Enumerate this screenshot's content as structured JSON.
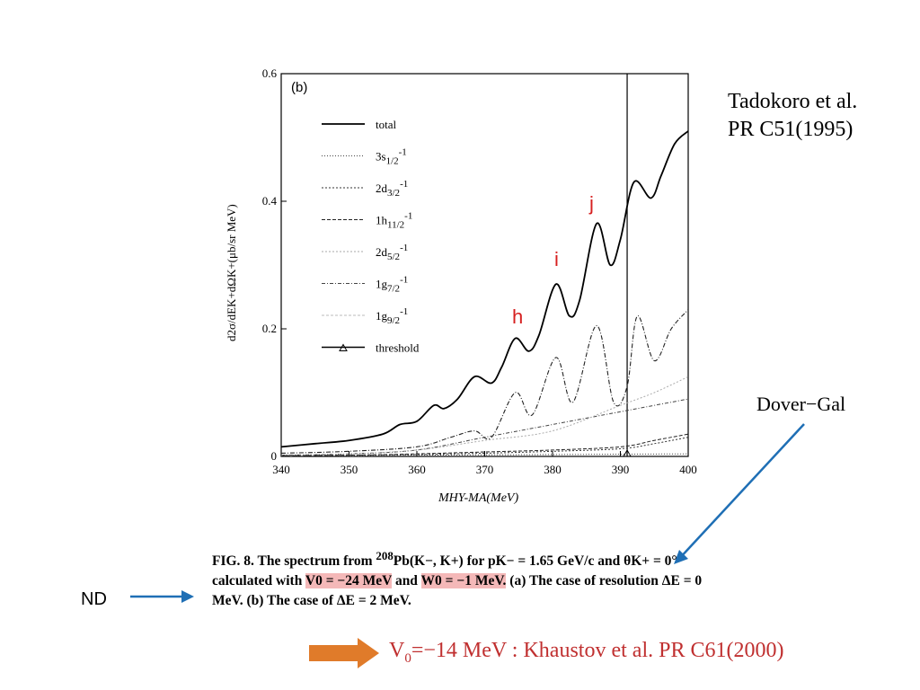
{
  "reference": {
    "line1": "Tadokoro et al.",
    "line2": "PR C51(1995)"
  },
  "dover_label": "Dover−Gal",
  "nd_label": "ND",
  "peak_labels": [
    "h",
    "i",
    "j"
  ],
  "khaustov": {
    "v": "V",
    "sub": "0",
    "rest": "=−14 MeV : Khaustov et al.  PR C61(2000)"
  },
  "caption": {
    "p1": "FIG. 8.  The spectrum from ",
    "sup": "208",
    "p2": "Pb(K−, K+) for pK− = 1.65 GeV/c and θK+ = 0° calculated with ",
    "v0": "V0 = −24 MeV",
    "and": " and ",
    "w0": "W0 = −1 MeV.",
    "p3": " (a) The case of resolution ΔE = 0 MeV. (b) The case of ΔE = 2 MeV."
  },
  "colors": {
    "arrow_blue": "#1f6fb5",
    "arrow_orange": "#e07b2a",
    "highlight": "#f4b8b8",
    "peak_red": "#d62020",
    "khaustov_red": "#c03030"
  },
  "chart_data": {
    "type": "line",
    "panel_label": "(b)",
    "xlabel": "MHY-MA(MeV)",
    "ylabel": "d2σ/dEK+dΩK+(μb/sr MeV)",
    "xlim": [
      340,
      400
    ],
    "ylim": [
      0,
      0.6
    ],
    "xticks": [
      340,
      350,
      360,
      370,
      380,
      390,
      400
    ],
    "yticks": [
      0,
      0.2,
      0.4,
      0.6
    ],
    "threshold_x": 391,
    "grid": false,
    "legend_position": "top-left",
    "legend": [
      "total",
      "3s1/2-1",
      "2d3/2-1",
      "1h11/2-1",
      "2d5/2-1",
      "1g7/2-1",
      "1g9/2-1",
      "threshold"
    ],
    "series": [
      {
        "name": "total",
        "x": [
          340,
          345,
          350,
          355,
          357.5,
          360,
          362.5,
          364,
          366,
          368.5,
          371,
          372.5,
          374.5,
          376.5,
          378,
          380.5,
          382.5,
          384,
          386.5,
          388.5,
          390,
          392,
          394.5,
          396,
          398,
          400
        ],
        "y": [
          0.015,
          0.02,
          0.025,
          0.035,
          0.05,
          0.055,
          0.08,
          0.075,
          0.09,
          0.125,
          0.115,
          0.14,
          0.185,
          0.165,
          0.19,
          0.27,
          0.22,
          0.245,
          0.365,
          0.3,
          0.34,
          0.43,
          0.405,
          0.44,
          0.49,
          0.51
        ]
      },
      {
        "name": "1g9/2-1",
        "x": [
          340,
          350,
          360,
          365,
          368.5,
          371,
          374.5,
          377,
          380.5,
          383,
          386.5,
          389,
          391,
          392.5,
          395,
          397.5,
          400
        ],
        "y": [
          0.005,
          0.008,
          0.015,
          0.03,
          0.04,
          0.03,
          0.1,
          0.065,
          0.155,
          0.085,
          0.205,
          0.085,
          0.11,
          0.22,
          0.15,
          0.2,
          0.23
        ]
      },
      {
        "name": "1g7/2-1",
        "x": [
          340,
          350,
          360,
          370,
          380,
          390,
          395,
          400
        ],
        "y": [
          0.002,
          0.004,
          0.01,
          0.03,
          0.05,
          0.07,
          0.08,
          0.09
        ]
      },
      {
        "name": "2d5/2-1",
        "x": [
          340,
          350,
          360,
          370,
          380,
          390,
          395,
          400
        ],
        "y": [
          0.002,
          0.004,
          0.01,
          0.025,
          0.04,
          0.08,
          0.1,
          0.125
        ]
      },
      {
        "name": "1h11/2-1",
        "x": [
          340,
          350,
          360,
          370,
          380,
          390,
          395,
          400
        ],
        "y": [
          0.001,
          0.002,
          0.004,
          0.007,
          0.01,
          0.015,
          0.025,
          0.035
        ]
      },
      {
        "name": "2d3/2-1",
        "x": [
          340,
          350,
          360,
          370,
          380,
          390,
          395,
          400
        ],
        "y": [
          0.001,
          0.002,
          0.003,
          0.005,
          0.008,
          0.012,
          0.02,
          0.03
        ]
      },
      {
        "name": "3s1/2-1",
        "x": [
          340,
          360,
          380,
          400
        ],
        "y": [
          0.001,
          0.002,
          0.003,
          0.004
        ]
      }
    ]
  }
}
